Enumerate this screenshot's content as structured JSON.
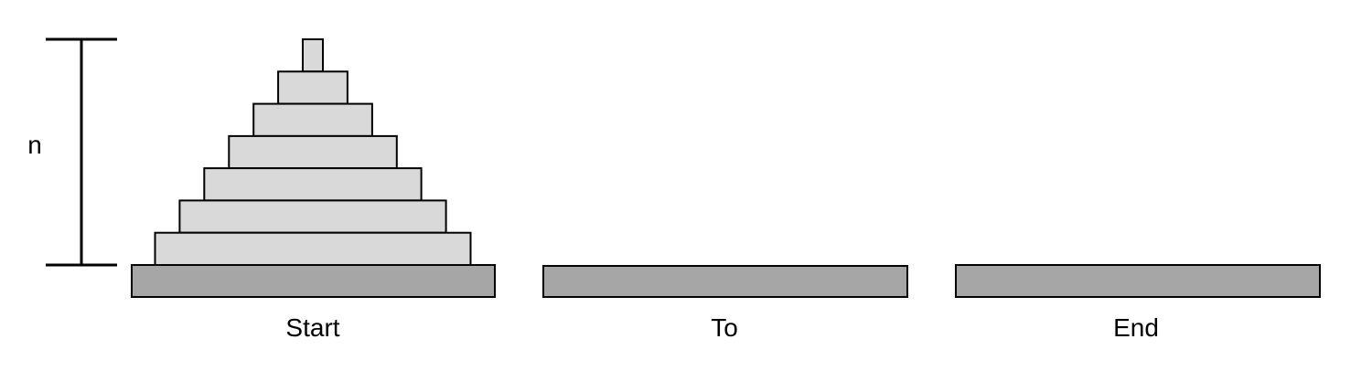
{
  "diagram": {
    "height_label": "n",
    "disk_count": 7,
    "colors": {
      "disk_fill": "#d9d9d9",
      "base_fill": "#a6a6a6",
      "stroke": "#000000"
    },
    "pegs": [
      {
        "id": "start",
        "label": "Start"
      },
      {
        "id": "to",
        "label": "To"
      },
      {
        "id": "end",
        "label": "End"
      }
    ]
  }
}
